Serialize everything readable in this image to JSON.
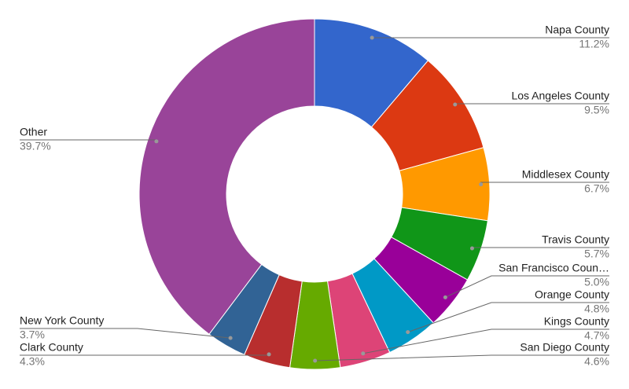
{
  "chart_data": {
    "type": "donut",
    "categories": [
      "Napa County",
      "Los Angeles County",
      "Middlesex County",
      "Travis County",
      "San Francisco Coun…",
      "Orange County",
      "Kings County",
      "San Diego County",
      "Clark County",
      "New York County",
      "Other"
    ],
    "values": [
      11.2,
      9.5,
      6.7,
      5.7,
      5.0,
      4.8,
      4.7,
      4.6,
      4.3,
      3.7,
      39.7
    ],
    "value_labels": [
      "11.2%",
      "9.5%",
      "6.7%",
      "5.7%",
      "5.0%",
      "4.8%",
      "4.7%",
      "4.6%",
      "4.3%",
      "3.7%",
      "39.7%"
    ],
    "colors": [
      "#3366cc",
      "#dc3912",
      "#ff9900",
      "#109618",
      "#990099",
      "#0099c6",
      "#dd4477",
      "#66aa00",
      "#b82e2e",
      "#316395",
      "#994499"
    ]
  }
}
